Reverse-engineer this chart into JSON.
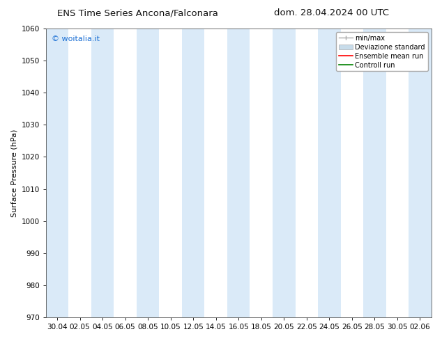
{
  "title_left": "ENS Time Series Ancona/Falconara",
  "title_right": "dom. 28.04.2024 00 UTC",
  "ylabel": "Surface Pressure (hPa)",
  "ylim": [
    970,
    1060
  ],
  "yticks": [
    970,
    980,
    990,
    1000,
    1010,
    1020,
    1030,
    1040,
    1050,
    1060
  ],
  "xtick_labels": [
    "30.04",
    "02.05",
    "04.05",
    "06.05",
    "08.05",
    "10.05",
    "12.05",
    "14.05",
    "16.05",
    "18.05",
    "20.05",
    "22.05",
    "24.05",
    "26.05",
    "28.05",
    "30.05",
    "02.06"
  ],
  "bg_color": "#ffffff",
  "plot_bg_color": "#ffffff",
  "band_color": "#daeaf8",
  "watermark": "© woitalia.it",
  "watermark_color": "#1a6fd4",
  "legend_entries": [
    "min/max",
    "Deviazione standard",
    "Ensemble mean run",
    "Controll run"
  ],
  "legend_colors": [
    "#aaaaaa",
    "#c8dcea",
    "#ff0000",
    "#008000"
  ],
  "title_fontsize": 9.5,
  "label_fontsize": 8,
  "tick_fontsize": 7.5,
  "watermark_fontsize": 8,
  "legend_fontsize": 7
}
